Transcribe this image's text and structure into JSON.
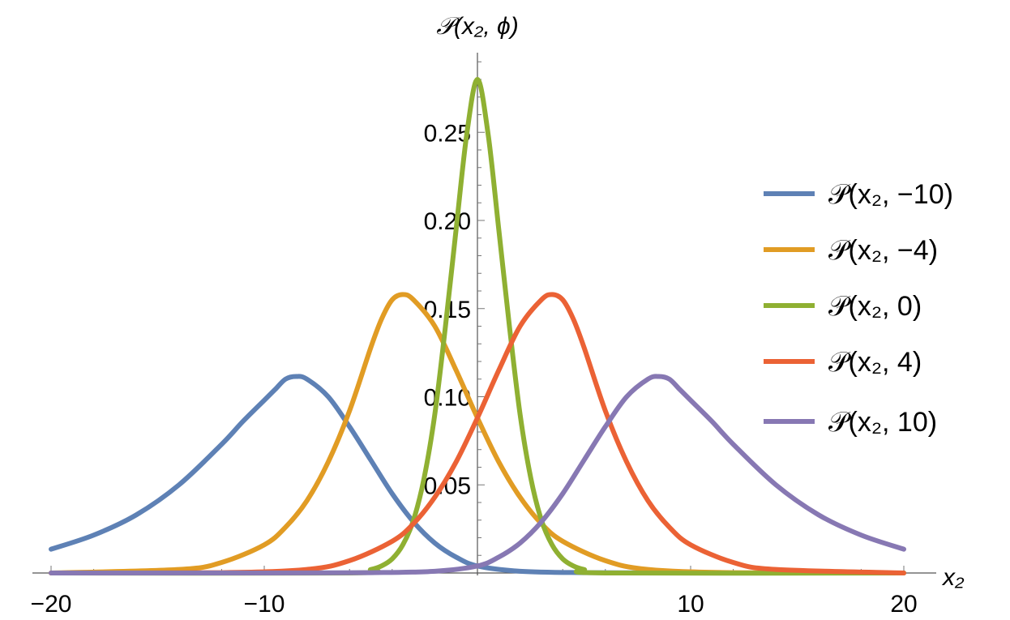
{
  "chart_data": {
    "type": "line",
    "xlabel": "x₂",
    "ylabel": "𝒫(x₂, ϕ)",
    "xlim": [
      -20,
      20
    ],
    "ylim": [
      0,
      0.28
    ],
    "x_ticks": [
      {
        "value": -20,
        "label": "−20"
      },
      {
        "value": -10,
        "label": "−10"
      },
      {
        "value": 10,
        "label": "10"
      },
      {
        "value": 20,
        "label": "20"
      }
    ],
    "y_ticks": [
      {
        "value": 0.05,
        "label": "0.05"
      },
      {
        "value": 0.1,
        "label": "0.10"
      },
      {
        "value": 0.15,
        "label": "0.15"
      },
      {
        "value": 0.2,
        "label": "0.20"
      },
      {
        "value": 0.25,
        "label": "0.25"
      }
    ],
    "legend_position": "right",
    "grid": false,
    "series": [
      {
        "name": "𝒫(x₂, −10)",
        "color": "#5E81B5",
        "x": [
          -20,
          -18,
          -16,
          -14,
          -12,
          -11,
          -10,
          -9.5,
          -9,
          -8.5,
          -8,
          -7,
          -6,
          -5,
          -4,
          -3,
          -2,
          -1,
          0,
          2,
          5,
          10,
          20
        ],
        "y": [
          0.0135,
          0.0215,
          0.033,
          0.05,
          0.073,
          0.086,
          0.098,
          0.104,
          0.11,
          0.1115,
          0.11,
          0.1,
          0.083,
          0.064,
          0.045,
          0.029,
          0.017,
          0.009,
          0.004,
          0.001,
          0.0002,
          0.0,
          0.0
        ]
      },
      {
        "name": "𝒫(x₂, −4)",
        "color": "#E19C24",
        "x": [
          -20,
          -14,
          -12,
          -10,
          -9,
          -8,
          -7,
          -6,
          -5,
          -4.5,
          -4,
          -3.5,
          -3,
          -2,
          -1,
          0,
          1,
          2,
          3,
          4,
          6,
          8,
          12,
          20
        ],
        "y": [
          0.0,
          0.002,
          0.006,
          0.016,
          0.026,
          0.041,
          0.063,
          0.092,
          0.128,
          0.144,
          0.155,
          0.158,
          0.155,
          0.14,
          0.115,
          0.088,
          0.063,
          0.043,
          0.028,
          0.018,
          0.007,
          0.002,
          0.0002,
          0.0
        ]
      },
      {
        "name": "𝒫(x₂, 0)",
        "color": "#8FB032",
        "x": [
          -20,
          -6,
          -5,
          -4.5,
          -4,
          -3.5,
          -3,
          -2.5,
          -2,
          -1.5,
          -1,
          -0.5,
          0,
          0.5,
          1,
          1.5,
          2,
          2.5,
          3,
          3.5,
          4,
          4.5,
          5,
          6,
          20
        ],
        "y": [
          0.0,
          0.0,
          0.002,
          0.004,
          0.008,
          0.016,
          0.03,
          0.054,
          0.09,
          0.14,
          0.195,
          0.249,
          0.28,
          0.249,
          0.195,
          0.14,
          0.09,
          0.054,
          0.03,
          0.016,
          0.008,
          0.004,
          0.002,
          0.0,
          0.0
        ]
      },
      {
        "name": "𝒫(x₂, 4)",
        "color": "#EB6235",
        "x": [
          -20,
          -12,
          -8,
          -6,
          -4,
          -3,
          -2,
          -1,
          0,
          1,
          2,
          3,
          3.5,
          4,
          4.5,
          5,
          6,
          7,
          8,
          9,
          10,
          12,
          14,
          20
        ],
        "y": [
          0.0,
          0.0002,
          0.002,
          0.007,
          0.018,
          0.028,
          0.043,
          0.063,
          0.088,
          0.115,
          0.14,
          0.155,
          0.158,
          0.155,
          0.144,
          0.128,
          0.092,
          0.063,
          0.041,
          0.026,
          0.016,
          0.006,
          0.002,
          0.0
        ]
      },
      {
        "name": "𝒫(x₂, 10)",
        "color": "#8778B3",
        "x": [
          -20,
          -10,
          -5,
          -2,
          0,
          1,
          2,
          3,
          4,
          5,
          6,
          7,
          8,
          8.5,
          9,
          9.5,
          10,
          11,
          12,
          14,
          16,
          18,
          20
        ],
        "y": [
          0.0,
          0.0,
          0.0002,
          0.001,
          0.004,
          0.009,
          0.017,
          0.029,
          0.045,
          0.064,
          0.083,
          0.1,
          0.11,
          0.1115,
          0.11,
          0.104,
          0.098,
          0.086,
          0.073,
          0.05,
          0.033,
          0.0215,
          0.0135
        ]
      }
    ]
  }
}
